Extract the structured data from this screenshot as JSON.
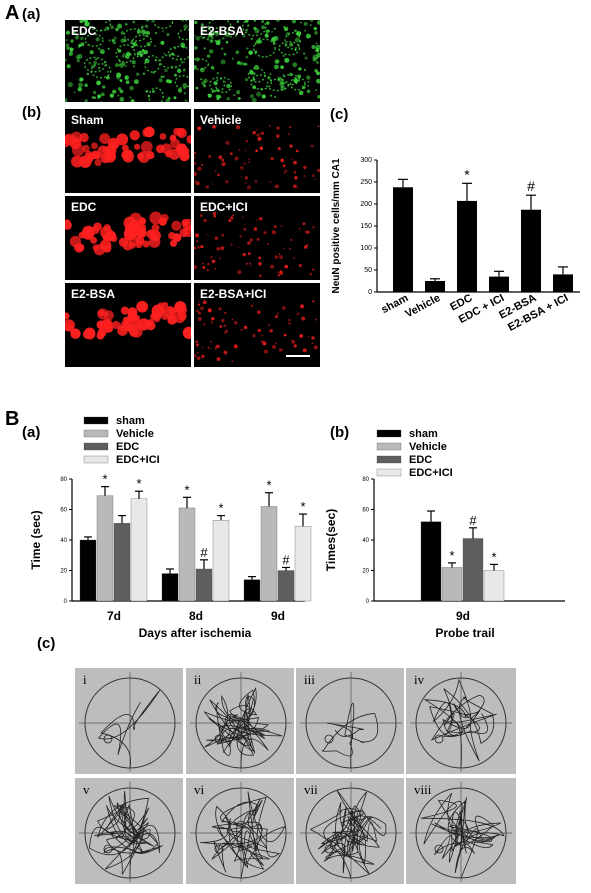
{
  "figure": {
    "label_A": "A",
    "label_Aa": "(a)",
    "label_Ab": "(b)",
    "label_Ac": "(c)",
    "label_B": "B",
    "label_Ba": "(a)",
    "label_Bb": "(b)",
    "label_Bc": "(c)"
  },
  "panel_a": {
    "left_title": "EDC",
    "right_title": "E2-BSA",
    "color": "#3fd63f"
  },
  "panel_b": {
    "color": "#ff2020",
    "tiles": [
      "Sham",
      "Vehicle",
      "EDC",
      "EDC+ICI",
      "E2-BSA",
      "E2-BSA+ICI"
    ]
  },
  "chart_data": [
    {
      "id": "Ac",
      "type": "bar",
      "ylabel": "NeuN positive cells/mm CA1",
      "ylim": [
        0,
        300
      ],
      "yticks": [
        0,
        50,
        100,
        150,
        200,
        250,
        300
      ],
      "categories": [
        "sham",
        "Vehicle",
        "EDC",
        "EDC + ICI",
        "E2-BSA",
        "E2-BSA + ICI"
      ],
      "values": [
        238,
        25,
        207,
        35,
        187,
        40
      ],
      "errors": [
        18,
        5,
        40,
        12,
        33,
        17
      ],
      "annotations": [
        "",
        "",
        "*",
        "",
        "#",
        ""
      ],
      "color": "#000000"
    },
    {
      "id": "Ba",
      "type": "bar",
      "ylabel": "Time (sec)",
      "xlabel": "Days after ischemia",
      "ylim": [
        0,
        80
      ],
      "yticks": [
        0,
        20,
        40,
        60,
        80
      ],
      "categories": [
        "7d",
        "8d",
        "9d"
      ],
      "legend_position": "top-left",
      "series": [
        {
          "name": "sham",
          "color": "#000000",
          "values": [
            40,
            18,
            14
          ],
          "errors": [
            2,
            3,
            2
          ],
          "annotations": [
            "",
            "",
            ""
          ]
        },
        {
          "name": "Vehicle",
          "color": "#b9b9b9",
          "values": [
            69,
            61,
            62
          ],
          "errors": [
            6,
            7,
            9
          ],
          "annotations": [
            "*",
            "*",
            "*"
          ]
        },
        {
          "name": "EDC",
          "color": "#5e5e5e",
          "values": [
            51,
            21,
            20
          ],
          "errors": [
            5,
            6,
            2
          ],
          "annotations": [
            "",
            "#",
            "#"
          ]
        },
        {
          "name": "EDC+ICI",
          "color": "#e8e8e8",
          "values": [
            67,
            53,
            49
          ],
          "errors": [
            5,
            3,
            8
          ],
          "annotations": [
            "*",
            "*",
            "*"
          ]
        }
      ]
    },
    {
      "id": "Bb",
      "type": "bar",
      "ylabel": "Times(sec)",
      "xlabel": "Probe trail",
      "ylim": [
        0,
        80
      ],
      "yticks": [
        0,
        20,
        40,
        60,
        80
      ],
      "categories": [
        "9d"
      ],
      "legend_position": "top-left",
      "series": [
        {
          "name": "sham",
          "color": "#000000",
          "values": [
            52
          ],
          "errors": [
            7
          ],
          "annotations": [
            ""
          ]
        },
        {
          "name": "Vehicle",
          "color": "#b9b9b9",
          "values": [
            22
          ],
          "errors": [
            3
          ],
          "annotations": [
            "*"
          ]
        },
        {
          "name": "EDC",
          "color": "#5e5e5e",
          "values": [
            41
          ],
          "errors": [
            7
          ],
          "annotations": [
            "#"
          ]
        },
        {
          "name": "EDC+ICI",
          "color": "#e8e8e8",
          "values": [
            20
          ],
          "errors": [
            4
          ],
          "annotations": [
            "*"
          ]
        }
      ]
    }
  ],
  "mazes": [
    "i",
    "ii",
    "iii",
    "iv",
    "v",
    "vi",
    "vii",
    "viii"
  ]
}
